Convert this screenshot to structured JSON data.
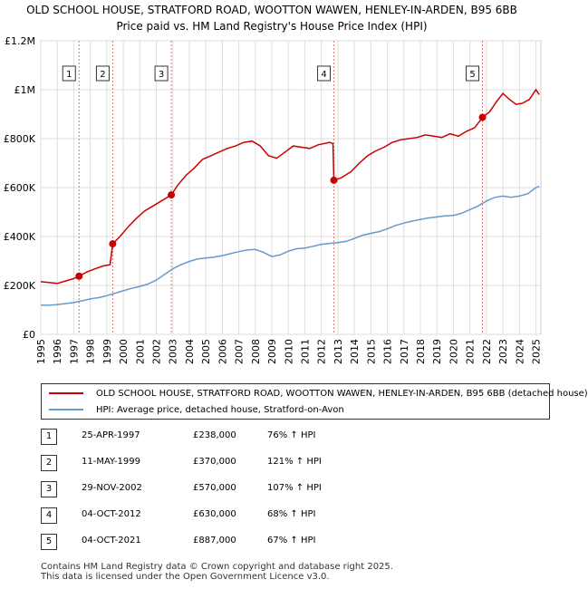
{
  "title_line1": "OLD SCHOOL HOUSE, STRATFORD ROAD, WOOTTON WAWEN, HENLEY-IN-ARDEN, B95 6BB",
  "title_line2": "Price paid vs. HM Land Registry's House Price Index (HPI)",
  "colors": {
    "red": "#cc0000",
    "blue": "#6699cc",
    "grid": "#dddddd",
    "vline": "#e57373"
  },
  "chart_data": {
    "type": "line",
    "y_ticks": [
      "£0",
      "£200K",
      "£400K",
      "£600K",
      "£800K",
      "£1M",
      "£1.2M"
    ],
    "ylim": [
      0,
      1200000
    ],
    "xlim": [
      1995,
      2025.3
    ],
    "x_ticks": [
      "1995",
      "1996",
      "1997",
      "1998",
      "1999",
      "2000",
      "2001",
      "2002",
      "2003",
      "2004",
      "2005",
      "2006",
      "2007",
      "2008",
      "2009",
      "2010",
      "2011",
      "2012",
      "2013",
      "2014",
      "2015",
      "2016",
      "2017",
      "2018",
      "2019",
      "2020",
      "2021",
      "2022",
      "2023",
      "2024",
      "2025"
    ],
    "series": [
      {
        "name": "OLD SCHOOL HOUSE, STRATFORD ROAD, WOOTTON WAWEN, HENLEY-IN-ARDEN, B95 6BB (detached house)",
        "color": "#cc0000",
        "points": [
          [
            1995.0,
            215000
          ],
          [
            1995.5,
            212000
          ],
          [
            1996.0,
            208000
          ],
          [
            1996.5,
            218000
          ],
          [
            1997.0,
            228000
          ],
          [
            1997.32,
            238000
          ],
          [
            1997.8,
            255000
          ],
          [
            1998.3,
            268000
          ],
          [
            1998.8,
            280000
          ],
          [
            1999.2,
            285000
          ],
          [
            1999.36,
            370000
          ],
          [
            1999.8,
            400000
          ],
          [
            2000.3,
            440000
          ],
          [
            2000.8,
            475000
          ],
          [
            2001.3,
            505000
          ],
          [
            2001.8,
            525000
          ],
          [
            2002.3,
            545000
          ],
          [
            2002.91,
            570000
          ],
          [
            2003.3,
            610000
          ],
          [
            2003.8,
            650000
          ],
          [
            2004.3,
            680000
          ],
          [
            2004.8,
            715000
          ],
          [
            2005.3,
            730000
          ],
          [
            2005.8,
            745000
          ],
          [
            2006.3,
            760000
          ],
          [
            2006.8,
            770000
          ],
          [
            2007.3,
            785000
          ],
          [
            2007.8,
            790000
          ],
          [
            2008.3,
            770000
          ],
          [
            2008.8,
            730000
          ],
          [
            2009.3,
            720000
          ],
          [
            2009.8,
            745000
          ],
          [
            2010.3,
            770000
          ],
          [
            2010.8,
            765000
          ],
          [
            2011.3,
            760000
          ],
          [
            2011.8,
            775000
          ],
          [
            2012.5,
            785000
          ],
          [
            2012.7,
            780000
          ],
          [
            2012.76,
            630000
          ],
          [
            2013.2,
            640000
          ],
          [
            2013.8,
            665000
          ],
          [
            2014.3,
            700000
          ],
          [
            2014.8,
            730000
          ],
          [
            2015.3,
            750000
          ],
          [
            2015.8,
            765000
          ],
          [
            2016.3,
            785000
          ],
          [
            2016.8,
            795000
          ],
          [
            2017.3,
            800000
          ],
          [
            2017.8,
            805000
          ],
          [
            2018.3,
            815000
          ],
          [
            2018.8,
            810000
          ],
          [
            2019.3,
            805000
          ],
          [
            2019.8,
            820000
          ],
          [
            2020.3,
            810000
          ],
          [
            2020.8,
            830000
          ],
          [
            2021.3,
            845000
          ],
          [
            2021.76,
            887000
          ],
          [
            2022.2,
            910000
          ],
          [
            2022.6,
            950000
          ],
          [
            2023.0,
            985000
          ],
          [
            2023.4,
            960000
          ],
          [
            2023.8,
            940000
          ],
          [
            2024.2,
            945000
          ],
          [
            2024.6,
            960000
          ],
          [
            2025.0,
            1000000
          ],
          [
            2025.2,
            980000
          ]
        ]
      },
      {
        "name": "HPI: Average price, detached house, Stratford-on-Avon",
        "color": "#6699cc",
        "points": [
          [
            1995.0,
            120000
          ],
          [
            1995.5,
            119000
          ],
          [
            1996.0,
            122000
          ],
          [
            1996.5,
            126000
          ],
          [
            1997.0,
            130000
          ],
          [
            1997.5,
            137000
          ],
          [
            1998.0,
            145000
          ],
          [
            1998.5,
            150000
          ],
          [
            1999.0,
            158000
          ],
          [
            1999.5,
            168000
          ],
          [
            2000.0,
            178000
          ],
          [
            2000.5,
            188000
          ],
          [
            2001.0,
            196000
          ],
          [
            2001.5,
            206000
          ],
          [
            2002.0,
            222000
          ],
          [
            2002.5,
            245000
          ],
          [
            2003.0,
            268000
          ],
          [
            2003.5,
            285000
          ],
          [
            2004.0,
            298000
          ],
          [
            2004.5,
            308000
          ],
          [
            2005.0,
            312000
          ],
          [
            2005.5,
            316000
          ],
          [
            2006.0,
            322000
          ],
          [
            2006.5,
            330000
          ],
          [
            2007.0,
            338000
          ],
          [
            2007.5,
            345000
          ],
          [
            2008.0,
            347000
          ],
          [
            2008.5,
            335000
          ],
          [
            2009.0,
            318000
          ],
          [
            2009.5,
            325000
          ],
          [
            2010.0,
            340000
          ],
          [
            2010.5,
            350000
          ],
          [
            2011.0,
            353000
          ],
          [
            2011.5,
            360000
          ],
          [
            2012.0,
            368000
          ],
          [
            2012.5,
            372000
          ],
          [
            2013.0,
            375000
          ],
          [
            2013.5,
            380000
          ],
          [
            2014.0,
            392000
          ],
          [
            2014.5,
            405000
          ],
          [
            2015.0,
            413000
          ],
          [
            2015.5,
            420000
          ],
          [
            2016.0,
            432000
          ],
          [
            2016.5,
            445000
          ],
          [
            2017.0,
            455000
          ],
          [
            2017.5,
            463000
          ],
          [
            2018.0,
            470000
          ],
          [
            2018.5,
            476000
          ],
          [
            2019.0,
            480000
          ],
          [
            2019.5,
            484000
          ],
          [
            2020.0,
            486000
          ],
          [
            2020.5,
            495000
          ],
          [
            2021.0,
            510000
          ],
          [
            2021.5,
            525000
          ],
          [
            2022.0,
            545000
          ],
          [
            2022.5,
            560000
          ],
          [
            2023.0,
            565000
          ],
          [
            2023.5,
            560000
          ],
          [
            2024.0,
            565000
          ],
          [
            2024.5,
            575000
          ],
          [
            2025.0,
            600000
          ],
          [
            2025.2,
            605000
          ]
        ]
      }
    ],
    "sales": [
      {
        "num": "1",
        "x": 1997.32,
        "y": 238000
      },
      {
        "num": "2",
        "x": 1999.36,
        "y": 370000
      },
      {
        "num": "3",
        "x": 2002.91,
        "y": 570000
      },
      {
        "num": "4",
        "x": 2012.76,
        "y": 630000
      },
      {
        "num": "5",
        "x": 2021.76,
        "y": 887000
      }
    ]
  },
  "legend": {
    "red_label": "OLD SCHOOL HOUSE, STRATFORD ROAD, WOOTTON WAWEN, HENLEY-IN-ARDEN, B95 6BB (detached house)",
    "blue_label": "HPI: Average price, detached house, Stratford-on-Avon"
  },
  "transactions": [
    {
      "num": "1",
      "date": "25-APR-1997",
      "price": "£238,000",
      "hpi": "76% ↑ HPI"
    },
    {
      "num": "2",
      "date": "11-MAY-1999",
      "price": "£370,000",
      "hpi": "121% ↑ HPI"
    },
    {
      "num": "3",
      "date": "29-NOV-2002",
      "price": "£570,000",
      "hpi": "107% ↑ HPI"
    },
    {
      "num": "4",
      "date": "04-OCT-2012",
      "price": "£630,000",
      "hpi": "68% ↑ HPI"
    },
    {
      "num": "5",
      "date": "04-OCT-2021",
      "price": "£887,000",
      "hpi": "67% ↑ HPI"
    }
  ],
  "footer_line1": "Contains HM Land Registry data © Crown copyright and database right 2025.",
  "footer_line2": "This data is licensed under the Open Government Licence v3.0."
}
